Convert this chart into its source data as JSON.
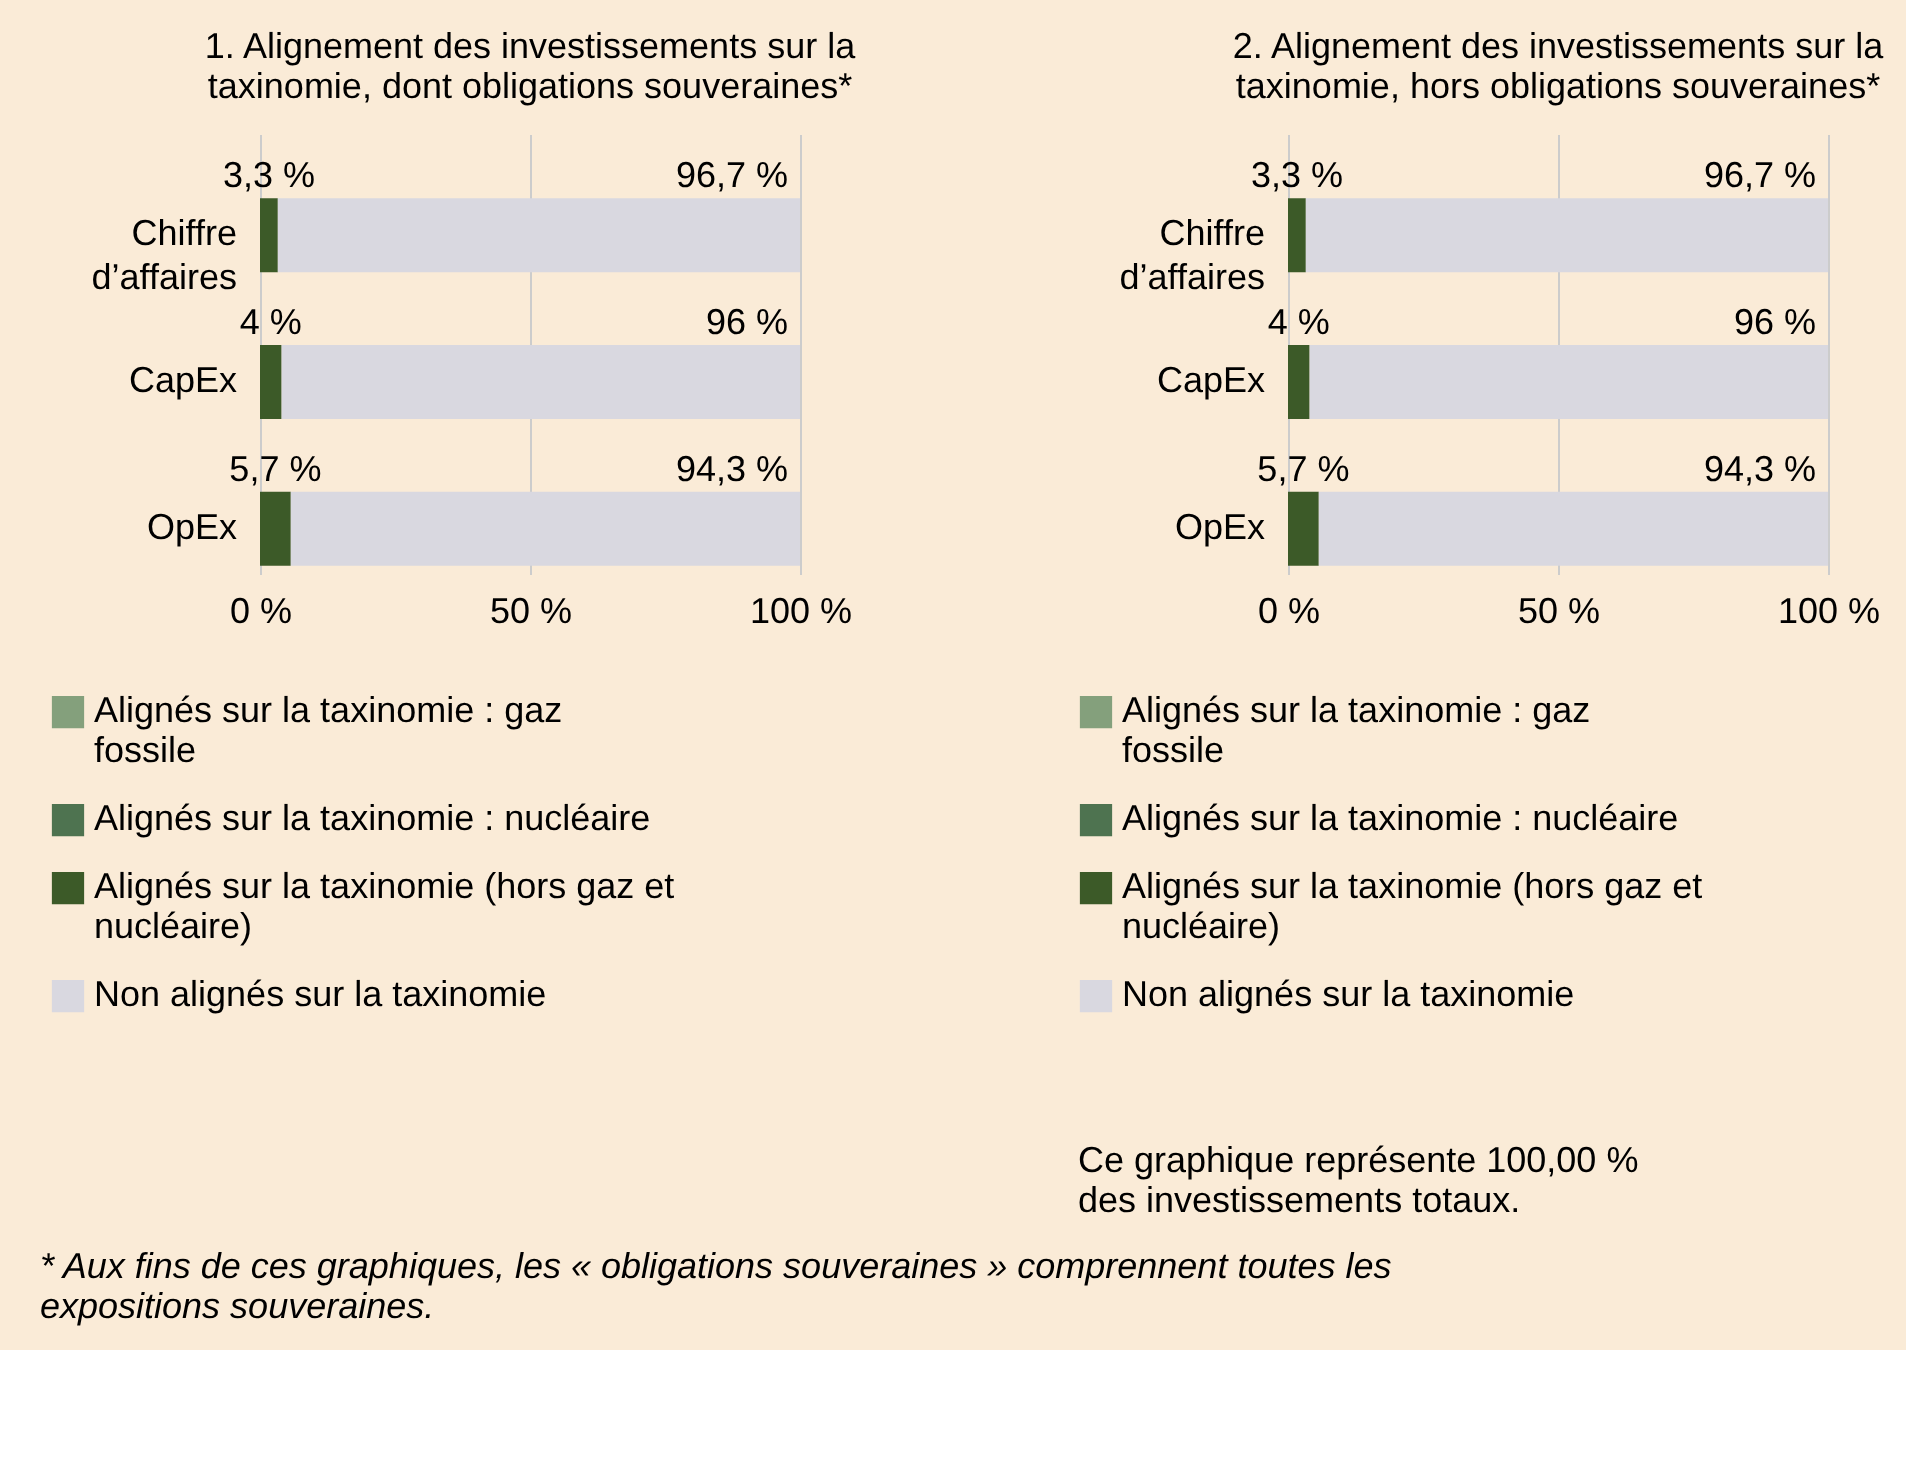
{
  "chart_data": [
    {
      "type": "bar",
      "orientation": "horizontal",
      "stacked": true,
      "title": "1. Alignement des investissements sur la taxinomie, dont obligations souveraines*",
      "categories": [
        "Chiffre d’affaires",
        "CapEx",
        "OpEx"
      ],
      "series": [
        {
          "name": "Alignés sur la taxinomie : gaz fossile",
          "color": "#84a07c",
          "values": [
            0,
            0,
            0
          ],
          "value_labels": [
            null,
            null,
            null
          ]
        },
        {
          "name": "Alignés sur la taxinomie : nucléaire",
          "color": "#4e7350",
          "values": [
            0,
            0,
            0
          ],
          "value_labels": [
            null,
            null,
            null
          ]
        },
        {
          "name": "Alignés sur la taxinomie (hors gaz et nucléaire)",
          "color": "#3c5a28",
          "values": [
            3.3,
            4,
            5.7
          ],
          "value_labels": [
            "3,3 %",
            "4 %",
            "5,7 %"
          ]
        },
        {
          "name": "Non alignés sur la taxinomie",
          "color": "#d9d8e0",
          "values": [
            96.7,
            96,
            94.3
          ],
          "value_labels": [
            "96,7 %",
            "96 %",
            "94,3 %"
          ]
        }
      ],
      "xlim": [
        0,
        100
      ],
      "xticks": [
        {
          "value": 0,
          "label": "0 %"
        },
        {
          "value": 50,
          "label": "50 %"
        },
        {
          "value": 100,
          "label": "100 %"
        }
      ],
      "grid": "x",
      "legend": "bottom",
      "annotations": [
        "* Aux fins de ces graphiques, les « obligations souveraines » comprennent toutes les expositions souveraines."
      ]
    },
    {
      "type": "bar",
      "orientation": "horizontal",
      "stacked": true,
      "title": "2. Alignement des investissements sur la taxinomie, hors obligations souveraines*",
      "categories": [
        "Chiffre d’affaires",
        "CapEx",
        "OpEx"
      ],
      "series": [
        {
          "name": "Alignés sur la taxinomie : gaz fossile",
          "color": "#84a07c",
          "values": [
            0,
            0,
            0
          ],
          "value_labels": [
            null,
            null,
            null
          ]
        },
        {
          "name": "Alignés sur la taxinomie : nucléaire",
          "color": "#4e7350",
          "values": [
            0,
            0,
            0
          ],
          "value_labels": [
            null,
            null,
            null
          ]
        },
        {
          "name": "Alignés sur la taxinomie (hors gaz et nucléaire)",
          "color": "#3c5a28",
          "values": [
            3.3,
            4,
            5.7
          ],
          "value_labels": [
            "3,3 %",
            "4 %",
            "5,7 %"
          ]
        },
        {
          "name": "Non alignés sur la taxinomie",
          "color": "#d9d8e0",
          "values": [
            96.7,
            96,
            94.3
          ],
          "value_labels": [
            "96,7 %",
            "96 %",
            "94,3 %"
          ]
        }
      ],
      "xlim": [
        0,
        100
      ],
      "xticks": [
        {
          "value": 0,
          "label": "0 %"
        },
        {
          "value": 50,
          "label": "50 %"
        },
        {
          "value": 100,
          "label": "100 %"
        }
      ],
      "grid": "x",
      "legend": "bottom",
      "annotations": [
        "Ce graphique représente 100,00 % des investissements totaux."
      ]
    }
  ]
}
